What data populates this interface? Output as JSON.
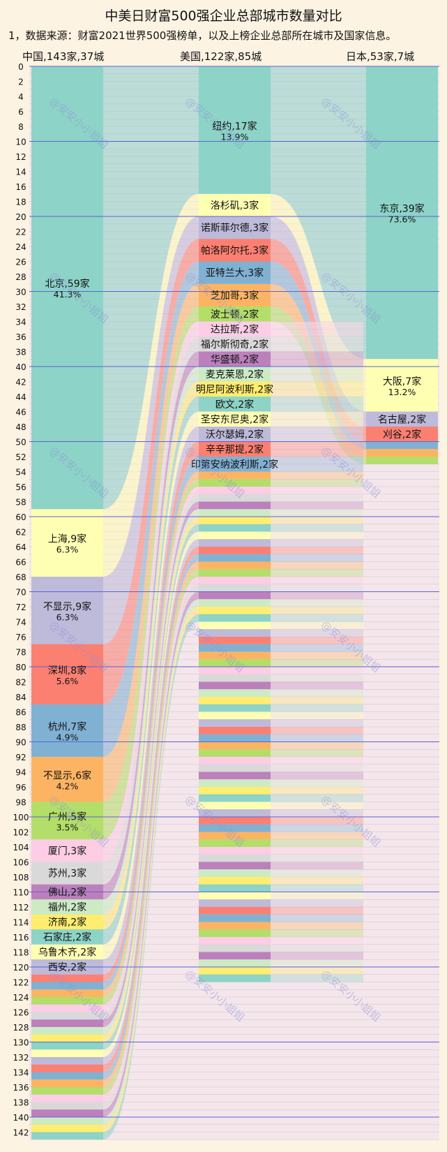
{
  "header": {
    "title": "中美日财富500强企业总部城市数量对比",
    "subtitle": "1，数据来源：财富2021世界500强榜单，以及上榜企业总部所在城市及国家信息。",
    "watermark": "@安安小小姐姐"
  },
  "chart_data": {
    "type": "bar",
    "title": "中美日财富500强企业总部城市数量对比",
    "ylim": [
      0,
      143
    ],
    "y_ticks": [
      0,
      2,
      4,
      6,
      8,
      10,
      12,
      14,
      16,
      18,
      20,
      22,
      24,
      26,
      28,
      30,
      32,
      34,
      36,
      38,
      40,
      42,
      44,
      46,
      48,
      50,
      52,
      54,
      56,
      58,
      60,
      62,
      64,
      66,
      68,
      70,
      72,
      74,
      76,
      78,
      80,
      82,
      84,
      86,
      88,
      90,
      92,
      94,
      96,
      98,
      100,
      102,
      104,
      106,
      108,
      110,
      112,
      114,
      116,
      118,
      120,
      122,
      124,
      126,
      128,
      130,
      132,
      134,
      136,
      138,
      140,
      142
    ],
    "grid": true,
    "countries": [
      {
        "header": "中国,143家,37城",
        "total": 143,
        "cities": [
          {
            "label": "北京,59家",
            "pct": "41.3%",
            "value": 59,
            "color": "#8dd3c7"
          },
          {
            "label": "上海,9家",
            "pct": "6.3%",
            "value": 9,
            "color": "#ffffb3"
          },
          {
            "label": "不显示,9家",
            "pct": "6.3%",
            "value": 9,
            "color": "#bebada"
          },
          {
            "label": "深圳,8家",
            "pct": "5.6%",
            "value": 8,
            "color": "#fb8072"
          },
          {
            "label": "杭州,7家",
            "pct": "4.9%",
            "value": 7,
            "color": "#80b1d3"
          },
          {
            "label": "不显示,6家",
            "pct": "4.2%",
            "value": 6,
            "color": "#fdb462"
          },
          {
            "label": "广州,5家",
            "pct": "3.5%",
            "value": 5,
            "color": "#b3de69"
          },
          {
            "label": "厦门,3家",
            "value": 3,
            "color": "#fccde5"
          },
          {
            "label": "苏州,3家",
            "value": 3,
            "color": "#d9d9d9"
          },
          {
            "label": "佛山,2家",
            "value": 2,
            "color": "#bc80bd"
          },
          {
            "label": "福州,2家",
            "value": 2,
            "color": "#ccebc5"
          },
          {
            "label": "济南,2家",
            "value": 2,
            "color": "#ffed6f"
          },
          {
            "label": "石家庄,2家",
            "value": 2,
            "color": "#8dd3c7"
          },
          {
            "label": "乌鲁木齐,2家",
            "value": 2,
            "color": "#ffffb3"
          },
          {
            "label": "西安,2家",
            "value": 2,
            "color": "#bebada"
          },
          {
            "value": 1
          },
          {
            "value": 1
          },
          {
            "value": 1
          },
          {
            "value": 1
          },
          {
            "value": 1
          },
          {
            "value": 1
          },
          {
            "value": 1
          },
          {
            "value": 1
          },
          {
            "value": 1
          },
          {
            "value": 1
          },
          {
            "value": 1
          },
          {
            "value": 1
          },
          {
            "value": 1
          },
          {
            "value": 1
          },
          {
            "value": 1
          },
          {
            "value": 1
          },
          {
            "value": 1
          },
          {
            "value": 1
          },
          {
            "value": 1
          },
          {
            "value": 1
          },
          {
            "value": 1
          },
          {
            "value": 1
          }
        ]
      },
      {
        "header": "美国,122家,85城",
        "total": 122,
        "cities": [
          {
            "label": "纽约,17家",
            "pct": "13.9%",
            "value": 17,
            "color": "#8dd3c7"
          },
          {
            "label": "洛杉矶,3家",
            "value": 3,
            "color": "#ffffb3"
          },
          {
            "label": "诺斯菲尔德,3家",
            "value": 3,
            "color": "#bebada"
          },
          {
            "label": "帕洛阿尔托,3家",
            "value": 3,
            "color": "#fb8072"
          },
          {
            "label": "亚特兰大,3家",
            "value": 3,
            "color": "#80b1d3"
          },
          {
            "label": "芝加哥,3家",
            "value": 3,
            "color": "#fdb462"
          },
          {
            "label": "波士顿,2家",
            "value": 2,
            "color": "#b3de69"
          },
          {
            "label": "达拉斯,2家",
            "value": 2,
            "color": "#fccde5"
          },
          {
            "label": "福尔斯彻奇,2家",
            "value": 2,
            "color": "#d9d9d9"
          },
          {
            "label": "华盛顿,2家",
            "value": 2,
            "color": "#bc80bd"
          },
          {
            "label": "麦克莱恩,2家",
            "value": 2,
            "color": "#ccebc5"
          },
          {
            "label": "明尼阿波利斯,2家",
            "value": 2,
            "color": "#ffed6f"
          },
          {
            "label": "欧文,2家",
            "value": 2,
            "color": "#8dd3c7"
          },
          {
            "label": "圣安东尼奥,2家",
            "value": 2,
            "color": "#ffffb3"
          },
          {
            "label": "沃尔瑟姆,2家",
            "value": 2,
            "color": "#bebada"
          },
          {
            "label": "辛辛那提,2家",
            "value": 2,
            "color": "#fb8072"
          },
          {
            "label": "印第安纳波利斯,2家",
            "value": 2,
            "color": "#80b1d3"
          },
          {
            "value": 1
          },
          {
            "value": 1
          },
          {
            "value": 1
          },
          {
            "value": 1
          },
          {
            "value": 1
          },
          {
            "value": 1
          },
          {
            "value": 1
          },
          {
            "value": 1
          },
          {
            "value": 1
          },
          {
            "value": 1
          },
          {
            "value": 1
          },
          {
            "value": 1
          },
          {
            "value": 1
          },
          {
            "value": 1
          },
          {
            "value": 1
          },
          {
            "value": 1
          },
          {
            "value": 1
          },
          {
            "value": 1
          },
          {
            "value": 1
          },
          {
            "value": 1
          },
          {
            "value": 1
          },
          {
            "value": 1
          },
          {
            "value": 1
          },
          {
            "value": 1
          },
          {
            "value": 1
          },
          {
            "value": 1
          },
          {
            "value": 1
          },
          {
            "value": 1
          },
          {
            "value": 1
          },
          {
            "value": 1
          },
          {
            "value": 1
          },
          {
            "value": 1
          },
          {
            "value": 1
          },
          {
            "value": 1
          },
          {
            "value": 1
          },
          {
            "value": 1
          },
          {
            "value": 1
          },
          {
            "value": 1
          },
          {
            "value": 1
          },
          {
            "value": 1
          },
          {
            "value": 1
          },
          {
            "value": 1
          },
          {
            "value": 1
          },
          {
            "value": 1
          },
          {
            "value": 1
          },
          {
            "value": 1
          },
          {
            "value": 1
          },
          {
            "value": 1
          },
          {
            "value": 1
          },
          {
            "value": 1
          },
          {
            "value": 1
          },
          {
            "value": 1
          },
          {
            "value": 1
          },
          {
            "value": 1
          },
          {
            "value": 1
          },
          {
            "value": 1
          },
          {
            "value": 1
          },
          {
            "value": 1
          },
          {
            "value": 1
          },
          {
            "value": 1
          },
          {
            "value": 1
          },
          {
            "value": 1
          },
          {
            "value": 1
          },
          {
            "value": 1
          },
          {
            "value": 1
          },
          {
            "value": 1
          },
          {
            "value": 1
          },
          {
            "value": 1
          }
        ]
      },
      {
        "header": "日本,53家,7城",
        "total": 53,
        "cities": [
          {
            "label": "东京,39家",
            "pct": "73.6%",
            "value": 39,
            "color": "#8dd3c7"
          },
          {
            "label": "大阪,7家",
            "pct": "13.2%",
            "value": 7,
            "color": "#ffffb3"
          },
          {
            "label": "名古屋,2家",
            "value": 2,
            "color": "#bebada"
          },
          {
            "label": "刈谷,2家",
            "value": 2,
            "color": "#fb8072"
          },
          {
            "value": 1,
            "color": "#80b1d3"
          },
          {
            "value": 1,
            "color": "#fdb462"
          },
          {
            "value": 1,
            "color": "#b3de69"
          }
        ]
      }
    ],
    "palette": [
      "#8dd3c7",
      "#ffffb3",
      "#bebada",
      "#fb8072",
      "#80b1d3",
      "#fdb462",
      "#b3de69",
      "#fccde5",
      "#d9d9d9",
      "#bc80bd",
      "#ccebc5",
      "#ffed6f"
    ]
  }
}
